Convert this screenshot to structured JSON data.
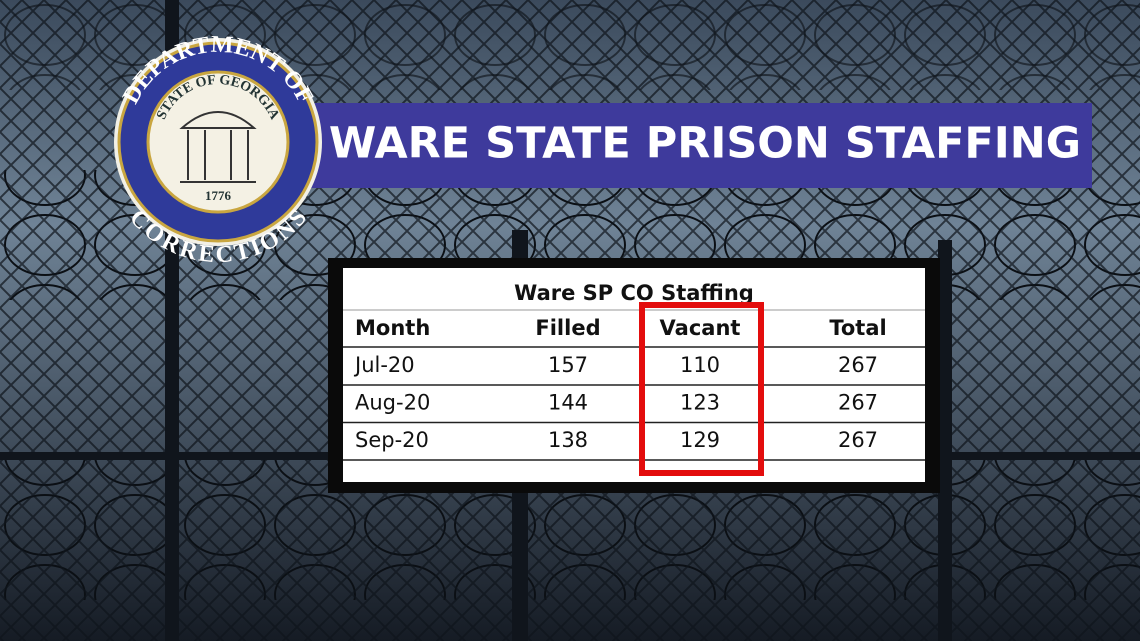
{
  "header": {
    "title": "WARE STATE PRISON STAFFING"
  },
  "logo": {
    "top_text": "DEPARTMENT OF",
    "bottom_text": "CORRECTIONS",
    "inner_text": "STATE OF GEORGIA",
    "year": "1776"
  },
  "table": {
    "title": "Ware SP CO Staffing",
    "columns": [
      "Month",
      "Filled",
      "Vacant",
      "Total"
    ],
    "rows": [
      [
        "Jul-20",
        157,
        110,
        267
      ],
      [
        "Aug-20",
        144,
        123,
        267
      ],
      [
        "Sep-20",
        138,
        129,
        267
      ]
    ]
  }
}
